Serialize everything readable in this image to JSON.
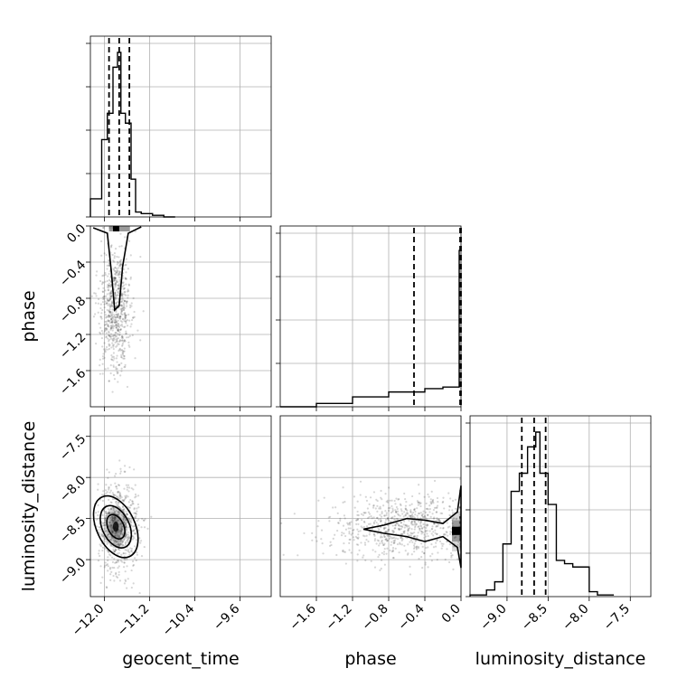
{
  "chart_data": {
    "type": "corner",
    "parameters": [
      "geocent_time",
      "phase",
      "luminosity_distance"
    ],
    "axis_labels": {
      "x": [
        "geocent_time",
        "phase",
        "luminosity_distance"
      ],
      "y": [
        "phase",
        "luminosity_distance"
      ]
    },
    "ranges": {
      "geocent_time": [
        -12.25,
        -9.05
      ],
      "phase": [
        -2.0,
        0.0
      ],
      "luminosity_distance": [
        -9.45,
        -7.25
      ]
    },
    "ticks": {
      "geocent_time": [
        -12.0,
        -11.2,
        -10.4,
        -9.6
      ],
      "phase_x": [
        -1.6,
        -1.2,
        -0.8,
        -0.4,
        0.0
      ],
      "phase_y": [
        0.0,
        -0.4,
        -0.8,
        -1.2,
        -1.6
      ],
      "luminosity_distance": [
        -9.0,
        -8.5,
        -8.0,
        -7.5
      ]
    },
    "tick_labels": {
      "geocent_time": [
        "−12.0",
        "−11.2",
        "−10.4",
        "−9.6"
      ],
      "phase_x": [
        "−1.6",
        "−1.2",
        "−0.8",
        "−0.4",
        "0.0"
      ],
      "phase_y": [
        "0.0",
        "−0.4",
        "−0.8",
        "−1.2",
        "−1.6"
      ],
      "luminosity_distance_x": [
        "−9.0",
        "−8.5",
        "−8.0",
        "−7.5"
      ],
      "luminosity_distance_y": [
        "−7.5",
        "−8.0",
        "−8.5",
        "−9.0"
      ]
    },
    "histograms": {
      "geocent_time": {
        "bin_edges": [
          -12.25,
          -12.05,
          -11.95,
          -11.85,
          -11.77,
          -11.71,
          -11.63,
          -11.53,
          -11.45,
          -11.35,
          -11.15,
          -10.95,
          -10.75
        ],
        "counts": [
          0.11,
          0.47,
          0.63,
          0.91,
          1.0,
          0.63,
          0.57,
          0.23,
          0.03,
          0.02,
          0.01,
          0.0
        ]
      },
      "phase": {
        "bin_edges": [
          -2.0,
          -1.6,
          -1.2,
          -0.8,
          -0.4,
          -0.2,
          -0.02,
          0.0
        ],
        "counts": [
          0.0,
          0.02,
          0.06,
          0.09,
          0.11,
          0.12,
          0.95
        ]
      },
      "luminosity_distance": {
        "bin_edges": [
          -9.45,
          -9.25,
          -9.15,
          -9.05,
          -8.95,
          -8.85,
          -8.75,
          -8.65,
          -8.6,
          -8.5,
          -8.4,
          -8.3,
          -8.2,
          -8.0,
          -7.9,
          -7.7
        ],
        "counts": [
          0.01,
          0.04,
          0.09,
          0.32,
          0.64,
          0.75,
          0.91,
          1.0,
          0.75,
          0.56,
          0.22,
          0.2,
          0.18,
          0.03,
          0.01
        ]
      }
    },
    "quantiles": {
      "geocent_time": [
        -11.92,
        -11.74,
        -11.56
      ],
      "phase": [
        -0.52,
        -0.01,
        0.0
      ],
      "luminosity_distance": [
        -8.82,
        -8.67,
        -8.53
      ]
    },
    "scatter_clusters": [
      {
        "panel": "geocent_time-phase",
        "center": [
          -11.8,
          -0.9
        ],
        "spread": [
          0.14,
          0.35
        ],
        "n": 700
      },
      {
        "panel": "geocent_time-luminosity_distance",
        "center": [
          -11.75,
          -8.6
        ],
        "spread": [
          0.18,
          0.28
        ],
        "n": 700
      },
      {
        "panel": "phase-luminosity_distance",
        "center": [
          -0.6,
          -8.6
        ],
        "spread": [
          0.45,
          0.2
        ],
        "n": 800
      }
    ],
    "grid": true,
    "colors": {
      "line": "#000000",
      "grid": "#b0b0b0"
    }
  }
}
